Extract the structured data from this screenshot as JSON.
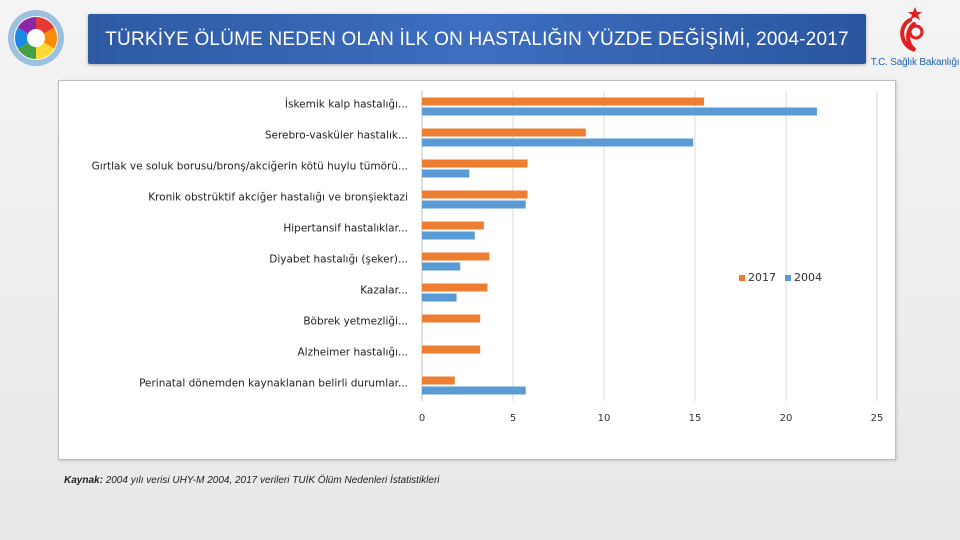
{
  "header": {
    "title": "TÜRKİYE ÖLÜME NEDEN OLAN İLK ON HASTALIĞIN YÜZDE DEĞİŞİMİ, 2004-2017",
    "ministry": "T.C. Sağlık Bakanlığı"
  },
  "source": {
    "label": "Kaynak:",
    "text": "2004 yılı verisi UHY-M 2004, 2017 verileri TUİK Ölüm Nedenleri İstatistikleri"
  },
  "colors": {
    "series_2017": "#ed7d31",
    "series_2004": "#5b9bd5",
    "title_bar": "#2d5aa3"
  },
  "chart_data": {
    "type": "bar",
    "orientation": "horizontal",
    "title": "",
    "xlabel": "",
    "ylabel": "",
    "xlim": [
      0,
      25
    ],
    "ticks": [
      0,
      5,
      10,
      15,
      20,
      25
    ],
    "grid": true,
    "legend_position": "right",
    "categories": [
      "İskemik kalp hastalığı...",
      "Serebro-vasküler hastalık...",
      "Gırtlak ve soluk borusu/bronş/akciğerin kötü huylu tümörü...",
      "Kronik obstrüktif akciğer hastalığı ve bronşiektazi",
      "Hipertansif hastalıklar...",
      "Diyabet hastalığı (şeker)...",
      "Kazalar...",
      "Böbrek yetmezliği...",
      "Alzheimer hastalığı...",
      "Perinatal dönemden kaynaklanan belirli durumlar..."
    ],
    "series": [
      {
        "name": "2017",
        "values": [
          15.5,
          9.0,
          5.8,
          5.8,
          3.4,
          3.7,
          3.6,
          3.2,
          3.2,
          1.8
        ]
      },
      {
        "name": "2004",
        "values": [
          21.7,
          14.9,
          2.6,
          5.7,
          2.9,
          2.1,
          1.9,
          0,
          0,
          5.7
        ]
      }
    ]
  }
}
